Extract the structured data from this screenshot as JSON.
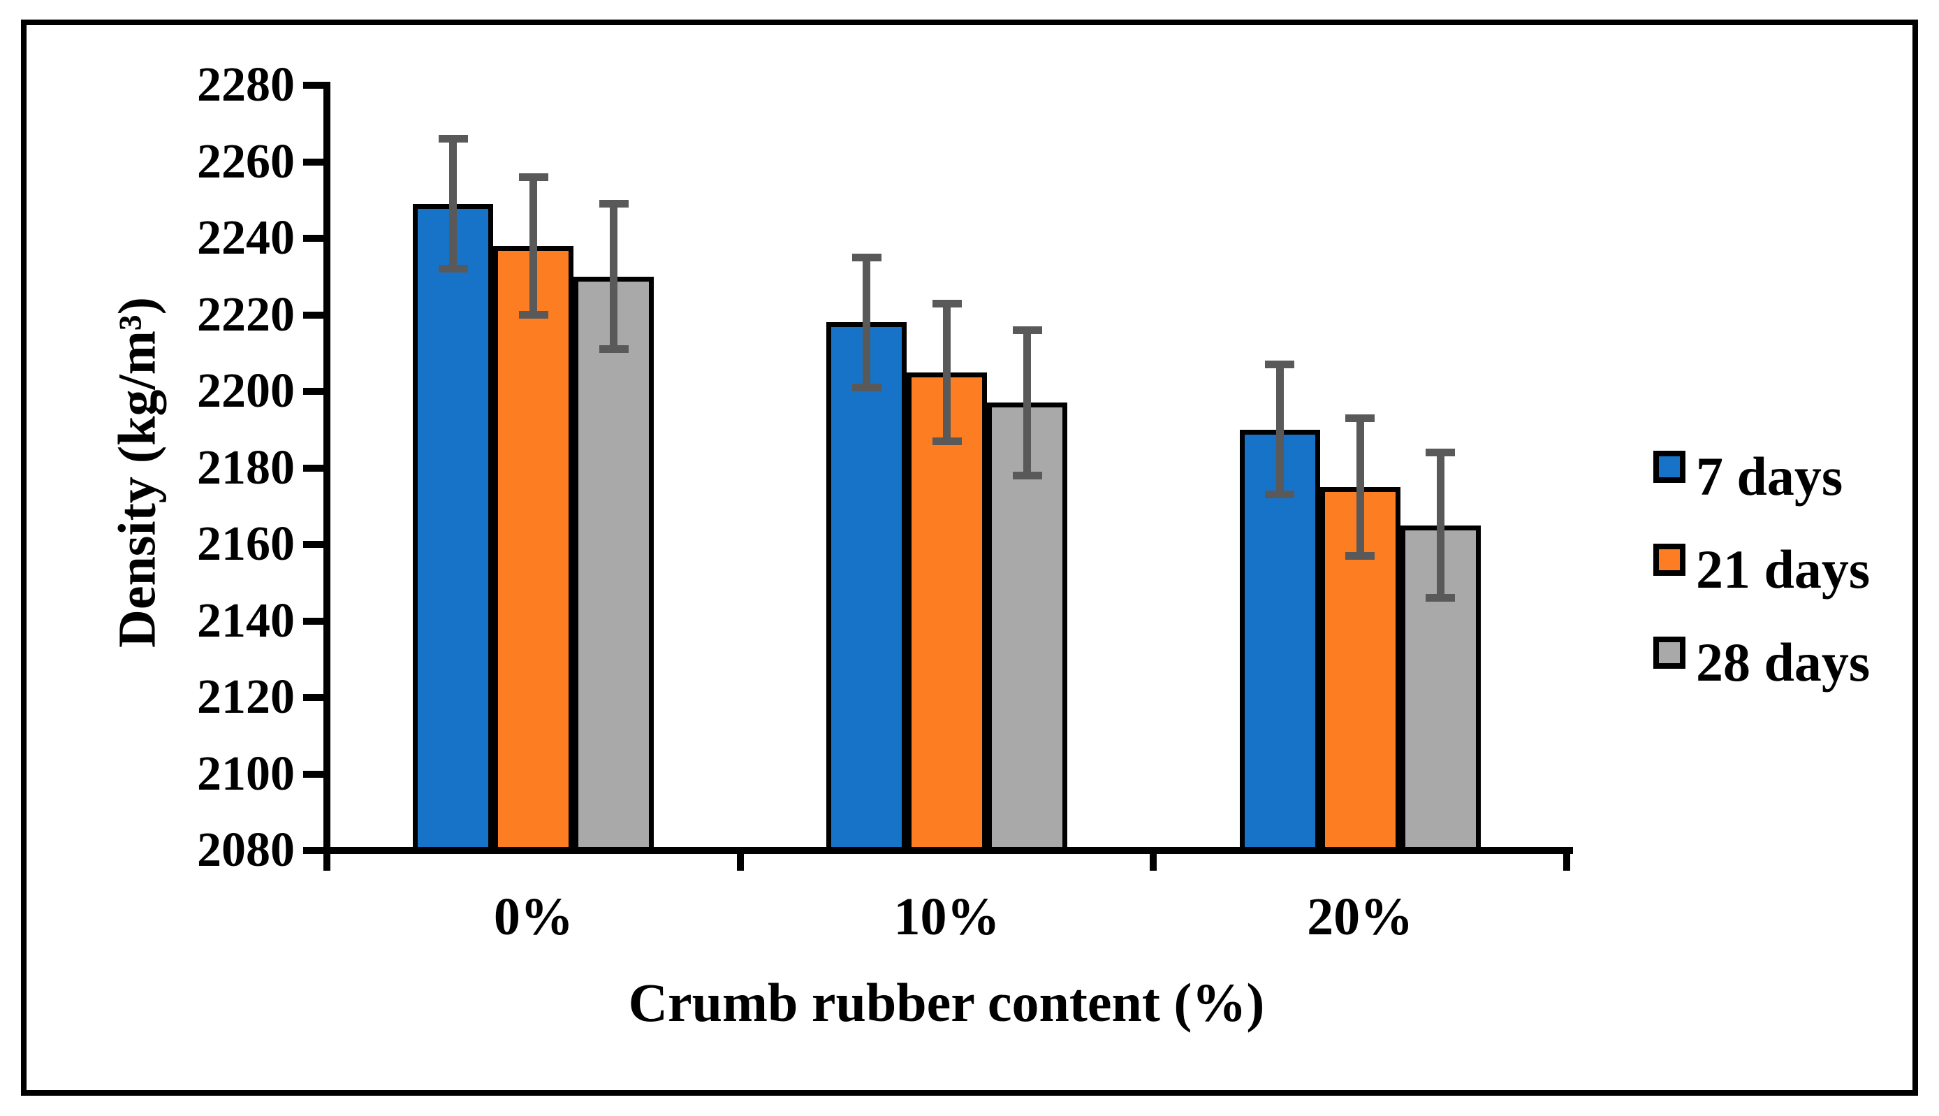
{
  "chart_data": {
    "type": "bar",
    "title": "",
    "xlabel": "Crumb rubber content (%)",
    "ylabel": "Density (kg/m³)",
    "categories": [
      "0%",
      "10%",
      "20%"
    ],
    "series": [
      {
        "name": "7 days",
        "color": "#1773C8",
        "values": [
          2249,
          2218,
          2190
        ],
        "error": 17
      },
      {
        "name": "21 days",
        "color": "#FC7D22",
        "values": [
          2238,
          2205,
          2175
        ],
        "error": 18
      },
      {
        "name": "28 days",
        "color": "#A9A9A9",
        "values": [
          2230,
          2197,
          2165
        ],
        "error": 19
      }
    ],
    "ylim": [
      2080,
      2280
    ],
    "yticks": [
      2080,
      2100,
      2120,
      2140,
      2160,
      2180,
      2200,
      2220,
      2240,
      2260,
      2280
    ],
    "ytick_step": 20,
    "grid": false,
    "legend_position": "right",
    "bar_edge_color": "#000000",
    "error_bar_color": "#595959",
    "axis_color": "#000000",
    "background_color": "#ffffff"
  }
}
